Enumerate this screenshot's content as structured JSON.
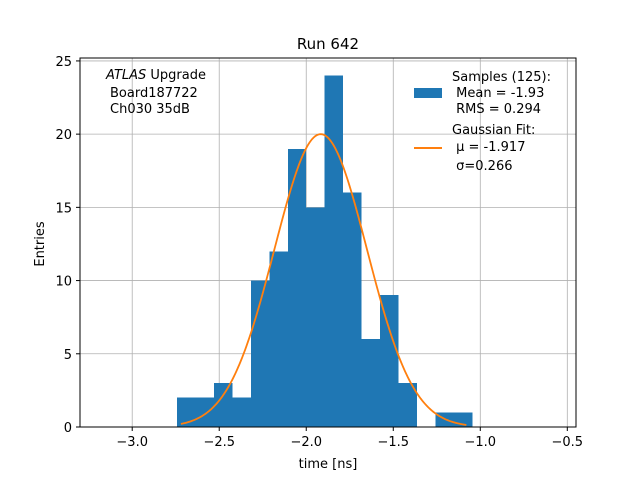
{
  "chart_data": {
    "type": "bar",
    "title": "Run 642",
    "xlabel": "time [ns]",
    "ylabel": "Entries",
    "xlim": [
      -3.3,
      -0.45
    ],
    "ylim": [
      0,
      25.2
    ],
    "xticks": [
      -3.0,
      -2.5,
      -2.0,
      -1.5,
      -1.0,
      -0.5
    ],
    "xtick_labels": [
      "−3.0",
      "−2.5",
      "−2.0",
      "−1.5",
      "−1.0",
      "−0.5"
    ],
    "yticks": [
      0,
      5,
      10,
      15,
      20,
      25
    ],
    "ytick_labels": [
      "0",
      "5",
      "10",
      "15",
      "20",
      "25"
    ],
    "grid": true,
    "annotation": [
      "ATLAS",
      " Upgrade",
      "Board187722",
      "Ch030 35dB"
    ],
    "histogram": {
      "name": "Samples (125):",
      "color": "#1f77b4",
      "bins": [
        {
          "x0": -2.743,
          "x1": -2.636,
          "count": 2
        },
        {
          "x0": -2.636,
          "x1": -2.53,
          "count": 2
        },
        {
          "x0": -2.53,
          "x1": -2.424,
          "count": 3
        },
        {
          "x0": -2.424,
          "x1": -2.318,
          "count": 2
        },
        {
          "x0": -2.318,
          "x1": -2.212,
          "count": 10
        },
        {
          "x0": -2.212,
          "x1": -2.106,
          "count": 12
        },
        {
          "x0": -2.106,
          "x1": -2.0,
          "count": 19
        },
        {
          "x0": -2.0,
          "x1": -1.894,
          "count": 15
        },
        {
          "x0": -1.894,
          "x1": -1.788,
          "count": 24
        },
        {
          "x0": -1.788,
          "x1": -1.682,
          "count": 16
        },
        {
          "x0": -1.682,
          "x1": -1.576,
          "count": 6
        },
        {
          "x0": -1.576,
          "x1": -1.47,
          "count": 9
        },
        {
          "x0": -1.47,
          "x1": -1.364,
          "count": 3
        },
        {
          "x0": -1.364,
          "x1": -1.258,
          "count": 0
        },
        {
          "x0": -1.258,
          "x1": -1.152,
          "count": 1
        },
        {
          "x0": -1.152,
          "x1": -1.046,
          "count": 1
        }
      ]
    },
    "fit": {
      "name": "Gaussian Fit:",
      "color": "#ff7f0e",
      "mu": -1.917,
      "sigma": 0.266,
      "amplitude": 20.0,
      "x_range": [
        -2.72,
        -1.08
      ]
    },
    "legend": {
      "placement": "top-right",
      "hist_lines": [
        "Samples (125):",
        " Mean = -1.93",
        " RMS = 0.294"
      ],
      "fit_lines": [
        "Gaussian Fit:",
        " μ = -1.917",
        " σ=0.266"
      ]
    }
  }
}
